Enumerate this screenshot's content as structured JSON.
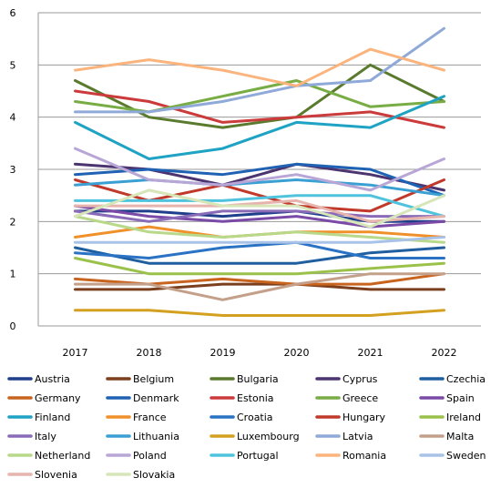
{
  "chart_data": {
    "type": "line",
    "title": "",
    "xlabel": "",
    "ylabel": "",
    "x": [
      "2017",
      "2018",
      "2019",
      "2020",
      "2021",
      "2022"
    ],
    "ylim": [
      0,
      6
    ],
    "yticks": [
      "0",
      "1",
      "2",
      "3",
      "4",
      "5",
      "6"
    ],
    "grid": "horizontal",
    "legend_position": "bottom",
    "series": [
      {
        "name": "Austria",
        "color": "#1f3f8a",
        "values": [
          2.2,
          2.2,
          2.1,
          2.2,
          2.0,
          2.0
        ]
      },
      {
        "name": "Belgium",
        "color": "#7b3f1e",
        "values": [
          0.7,
          0.7,
          0.8,
          0.8,
          0.7,
          0.7
        ]
      },
      {
        "name": "Bulgaria",
        "color": "#5a7a2e",
        "values": [
          4.7,
          4.0,
          3.8,
          4.0,
          5.0,
          4.3
        ]
      },
      {
        "name": "Cyprus",
        "color": "#4b3470",
        "values": [
          3.1,
          3.0,
          2.7,
          3.1,
          2.9,
          2.6
        ]
      },
      {
        "name": "Czechia",
        "color": "#1f5fa0",
        "values": [
          1.5,
          1.2,
          1.2,
          1.2,
          1.4,
          1.5
        ]
      },
      {
        "name": "Germany",
        "color": "#c8641e",
        "values": [
          0.9,
          0.8,
          0.9,
          0.8,
          0.8,
          1.0
        ]
      },
      {
        "name": "Denmark",
        "color": "#1f62b4",
        "values": [
          2.9,
          3.0,
          2.9,
          3.1,
          3.0,
          2.5
        ]
      },
      {
        "name": "Estonia",
        "color": "#cc3b3b",
        "values": [
          4.5,
          4.3,
          3.9,
          4.0,
          4.1,
          3.8
        ]
      },
      {
        "name": "Greece",
        "color": "#78ac44",
        "values": [
          4.3,
          4.1,
          4.4,
          4.7,
          4.2,
          4.3
        ]
      },
      {
        "name": "Spain",
        "color": "#7a4aa6",
        "values": [
          2.3,
          2.1,
          2.0,
          2.1,
          1.9,
          2.0
        ]
      },
      {
        "name": "Finland",
        "color": "#1fa3c4",
        "values": [
          3.9,
          3.2,
          3.4,
          3.9,
          3.8,
          4.4
        ]
      },
      {
        "name": "France",
        "color": "#f0902a",
        "values": [
          1.7,
          1.9,
          1.7,
          1.8,
          1.8,
          1.7
        ]
      },
      {
        "name": "Croatia",
        "color": "#2a73c4",
        "values": [
          1.4,
          1.3,
          1.5,
          1.6,
          1.3,
          1.3
        ]
      },
      {
        "name": "Hungary",
        "color": "#c0392b",
        "values": [
          2.8,
          2.4,
          2.7,
          2.3,
          2.2,
          2.8
        ]
      },
      {
        "name": "Ireland",
        "color": "#9ac24b",
        "values": [
          1.3,
          1.0,
          1.0,
          1.0,
          1.1,
          1.2
        ]
      },
      {
        "name": "Italy",
        "color": "#8a6bb8",
        "values": [
          2.2,
          2.0,
          2.2,
          2.2,
          2.1,
          2.1
        ]
      },
      {
        "name": "Lithuania",
        "color": "#3a9fd2",
        "values": [
          2.7,
          2.8,
          2.7,
          2.8,
          2.7,
          2.5
        ]
      },
      {
        "name": "Luxembourg",
        "color": "#d4a020",
        "values": [
          0.3,
          0.3,
          0.2,
          0.2,
          0.2,
          0.3
        ]
      },
      {
        "name": "Latvia",
        "color": "#8fa9d8",
        "values": [
          4.1,
          4.1,
          4.3,
          4.6,
          4.7,
          5.7
        ]
      },
      {
        "name": "Malta",
        "color": "#c4a08a",
        "values": [
          0.8,
          0.8,
          0.5,
          0.8,
          1.0,
          1.0
        ]
      },
      {
        "name": "Netherland",
        "color": "#b8d88a",
        "values": [
          2.1,
          1.8,
          1.7,
          1.8,
          1.7,
          1.6
        ]
      },
      {
        "name": "Poland",
        "color": "#b8a6d6",
        "values": [
          3.4,
          2.8,
          2.7,
          2.9,
          2.6,
          3.2
        ]
      },
      {
        "name": "Portugal",
        "color": "#4fc3dd",
        "values": [
          2.4,
          2.4,
          2.4,
          2.5,
          2.5,
          2.1
        ]
      },
      {
        "name": "Romania",
        "color": "#fbb47d",
        "values": [
          4.9,
          5.1,
          4.9,
          4.6,
          5.3,
          4.9
        ]
      },
      {
        "name": "Sweden",
        "color": "#a9c3e8",
        "values": [
          1.6,
          1.6,
          1.6,
          1.6,
          1.6,
          1.7
        ]
      },
      {
        "name": "Slovenia",
        "color": "#e6b3ad",
        "values": [
          2.3,
          2.3,
          2.3,
          2.4,
          2.0,
          2.1
        ]
      },
      {
        "name": "Slovakia",
        "color": "#d6e6b8",
        "values": [
          2.1,
          2.6,
          2.3,
          2.3,
          1.9,
          2.5
        ]
      }
    ]
  }
}
